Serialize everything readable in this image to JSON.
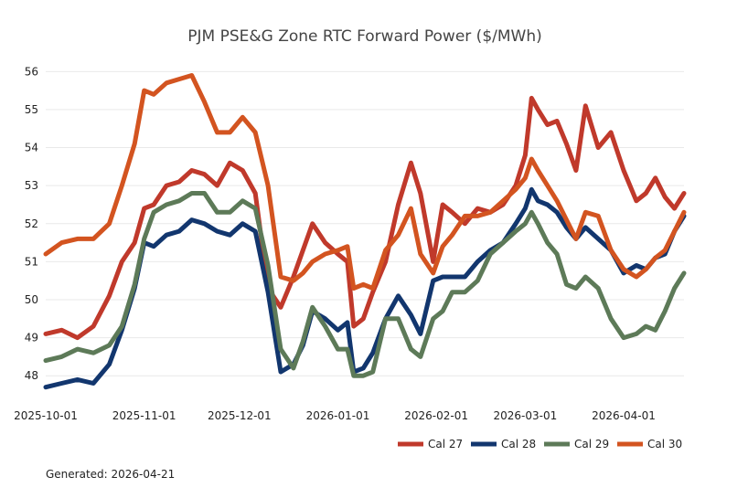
{
  "chart_data": {
    "type": "line",
    "title": "PJM PSE&G Zone RTC Forward Power ($/MWh)",
    "xlabel": "",
    "ylabel": "",
    "x_range": [
      "2025-10-01",
      "2026-04-20"
    ],
    "ylim": [
      47.5,
      56.2
    ],
    "yticks": [
      48,
      49,
      50,
      51,
      52,
      53,
      54,
      55,
      56
    ],
    "xticks": [
      "2025-10-01",
      "2025-11-01",
      "2025-12-01",
      "2026-01-01",
      "2026-02-01",
      "2026-03-01",
      "2026-04-01"
    ],
    "grid": true,
    "legend_position": "bottom-right",
    "series": [
      {
        "name": "Cal 27",
        "color": "#c0392b",
        "x": [
          "2025-10-01",
          "2025-10-06",
          "2025-10-11",
          "2025-10-16",
          "2025-10-21",
          "2025-10-25",
          "2025-10-29",
          "2025-11-01",
          "2025-11-04",
          "2025-11-08",
          "2025-11-12",
          "2025-11-16",
          "2025-11-20",
          "2025-11-24",
          "2025-11-28",
          "2025-12-02",
          "2025-12-06",
          "2025-12-10",
          "2025-12-14",
          "2025-12-18",
          "2025-12-21",
          "2025-12-24",
          "2025-12-28",
          "2026-01-01",
          "2026-01-04",
          "2026-01-06",
          "2026-01-09",
          "2026-01-12",
          "2026-01-16",
          "2026-01-20",
          "2026-01-24",
          "2026-01-27",
          "2026-01-31",
          "2026-02-03",
          "2026-02-06",
          "2026-02-10",
          "2026-02-14",
          "2026-02-18",
          "2026-02-22",
          "2026-02-26",
          "2026-03-01",
          "2026-03-03",
          "2026-03-05",
          "2026-03-08",
          "2026-03-11",
          "2026-03-14",
          "2026-03-17",
          "2026-03-20",
          "2026-03-24",
          "2026-03-28",
          "2026-04-01",
          "2026-04-05",
          "2026-04-08",
          "2026-04-11",
          "2026-04-14",
          "2026-04-17",
          "2026-04-20"
        ],
        "values": [
          49.1,
          49.2,
          49.0,
          49.3,
          50.1,
          51.0,
          51.5,
          52.4,
          52.5,
          53.0,
          53.1,
          53.4,
          53.3,
          53.0,
          53.6,
          53.4,
          52.8,
          50.3,
          49.8,
          50.6,
          51.3,
          52.0,
          51.5,
          51.2,
          51.0,
          49.3,
          49.5,
          50.2,
          51.0,
          52.5,
          53.6,
          52.8,
          51.0,
          52.5,
          52.3,
          52.0,
          52.4,
          52.3,
          52.5,
          53.0,
          53.8,
          55.3,
          55.0,
          54.6,
          54.7,
          54.1,
          53.4,
          55.1,
          54.0,
          54.4,
          53.4,
          52.6,
          52.8,
          53.2,
          52.7,
          52.4,
          52.8
        ]
      },
      {
        "name": "Cal 28",
        "color": "#12366e",
        "x": [
          "2025-10-01",
          "2025-10-06",
          "2025-10-11",
          "2025-10-16",
          "2025-10-21",
          "2025-10-25",
          "2025-10-29",
          "2025-11-01",
          "2025-11-04",
          "2025-11-08",
          "2025-11-12",
          "2025-11-16",
          "2025-11-20",
          "2025-11-24",
          "2025-11-28",
          "2025-12-02",
          "2025-12-06",
          "2025-12-10",
          "2025-12-14",
          "2025-12-18",
          "2025-12-21",
          "2025-12-24",
          "2025-12-28",
          "2026-01-01",
          "2026-01-04",
          "2026-01-06",
          "2026-01-09",
          "2026-01-12",
          "2026-01-16",
          "2026-01-20",
          "2026-01-24",
          "2026-01-27",
          "2026-01-31",
          "2026-02-03",
          "2026-02-06",
          "2026-02-10",
          "2026-02-14",
          "2026-02-18",
          "2026-02-22",
          "2026-02-26",
          "2026-03-01",
          "2026-03-03",
          "2026-03-05",
          "2026-03-08",
          "2026-03-11",
          "2026-03-14",
          "2026-03-17",
          "2026-03-20",
          "2026-03-24",
          "2026-03-28",
          "2026-04-01",
          "2026-04-05",
          "2026-04-08",
          "2026-04-11",
          "2026-04-14",
          "2026-04-17",
          "2026-04-20"
        ],
        "values": [
          47.7,
          47.8,
          47.9,
          47.8,
          48.3,
          49.2,
          50.3,
          51.5,
          51.4,
          51.7,
          51.8,
          52.1,
          52.0,
          51.8,
          51.7,
          52.0,
          51.8,
          50.2,
          48.1,
          48.3,
          48.8,
          49.7,
          49.5,
          49.2,
          49.4,
          48.1,
          48.2,
          48.6,
          49.5,
          50.1,
          49.6,
          49.1,
          50.5,
          50.6,
          50.6,
          50.6,
          51.0,
          51.3,
          51.5,
          52.0,
          52.4,
          52.9,
          52.6,
          52.5,
          52.3,
          51.9,
          51.6,
          51.9,
          51.6,
          51.3,
          50.7,
          50.9,
          50.8,
          51.1,
          51.2,
          51.8,
          52.2
        ]
      },
      {
        "name": "Cal 29",
        "color": "#5d7a58",
        "x": [
          "2025-10-01",
          "2025-10-06",
          "2025-10-11",
          "2025-10-16",
          "2025-10-21",
          "2025-10-25",
          "2025-10-29",
          "2025-11-01",
          "2025-11-04",
          "2025-11-08",
          "2025-11-12",
          "2025-11-16",
          "2025-11-20",
          "2025-11-24",
          "2025-11-28",
          "2025-12-02",
          "2025-12-06",
          "2025-12-10",
          "2025-12-14",
          "2025-12-18",
          "2025-12-21",
          "2025-12-24",
          "2025-12-28",
          "2026-01-01",
          "2026-01-04",
          "2026-01-06",
          "2026-01-09",
          "2026-01-12",
          "2026-01-16",
          "2026-01-20",
          "2026-01-24",
          "2026-01-27",
          "2026-01-31",
          "2026-02-03",
          "2026-02-06",
          "2026-02-10",
          "2026-02-14",
          "2026-02-18",
          "2026-02-22",
          "2026-02-26",
          "2026-03-01",
          "2026-03-03",
          "2026-03-05",
          "2026-03-08",
          "2026-03-11",
          "2026-03-14",
          "2026-03-17",
          "2026-03-20",
          "2026-03-24",
          "2026-03-28",
          "2026-04-01",
          "2026-04-05",
          "2026-04-08",
          "2026-04-11",
          "2026-04-14",
          "2026-04-17",
          "2026-04-20"
        ],
        "values": [
          48.4,
          48.5,
          48.7,
          48.6,
          48.8,
          49.3,
          50.4,
          51.6,
          52.3,
          52.5,
          52.6,
          52.8,
          52.8,
          52.3,
          52.3,
          52.6,
          52.4,
          50.9,
          48.7,
          48.2,
          48.9,
          49.8,
          49.3,
          48.7,
          48.7,
          48.0,
          48.0,
          48.1,
          49.5,
          49.5,
          48.7,
          48.5,
          49.5,
          49.7,
          50.2,
          50.2,
          50.5,
          51.2,
          51.5,
          51.8,
          52.0,
          52.3,
          52.0,
          51.5,
          51.2,
          50.4,
          50.3,
          50.6,
          50.3,
          49.5,
          49.0,
          49.1,
          49.3,
          49.2,
          49.7,
          50.3,
          50.7
        ]
      },
      {
        "name": "Cal 30",
        "color": "#d35420",
        "x": [
          "2025-10-01",
          "2025-10-06",
          "2025-10-11",
          "2025-10-16",
          "2025-10-21",
          "2025-10-25",
          "2025-10-29",
          "2025-11-01",
          "2025-11-04",
          "2025-11-08",
          "2025-11-12",
          "2025-11-16",
          "2025-11-20",
          "2025-11-24",
          "2025-11-28",
          "2025-12-02",
          "2025-12-06",
          "2025-12-10",
          "2025-12-14",
          "2025-12-18",
          "2025-12-21",
          "2025-12-24",
          "2025-12-28",
          "2026-01-01",
          "2026-01-04",
          "2026-01-06",
          "2026-01-09",
          "2026-01-12",
          "2026-01-16",
          "2026-01-20",
          "2026-01-24",
          "2026-01-27",
          "2026-01-31",
          "2026-02-03",
          "2026-02-06",
          "2026-02-10",
          "2026-02-14",
          "2026-02-18",
          "2026-02-22",
          "2026-02-26",
          "2026-03-01",
          "2026-03-03",
          "2026-03-05",
          "2026-03-08",
          "2026-03-11",
          "2026-03-14",
          "2026-03-17",
          "2026-03-20",
          "2026-03-24",
          "2026-03-28",
          "2026-04-01",
          "2026-04-05",
          "2026-04-08",
          "2026-04-11",
          "2026-04-14",
          "2026-04-17",
          "2026-04-20"
        ],
        "values": [
          51.2,
          51.5,
          51.6,
          51.6,
          52.0,
          53.0,
          54.1,
          55.5,
          55.4,
          55.7,
          55.8,
          55.9,
          55.2,
          54.4,
          54.4,
          54.8,
          54.4,
          53.0,
          50.6,
          50.5,
          50.7,
          51.0,
          51.2,
          51.3,
          51.4,
          50.3,
          50.4,
          50.3,
          51.3,
          51.7,
          52.4,
          51.2,
          50.7,
          51.4,
          51.7,
          52.2,
          52.2,
          52.3,
          52.6,
          52.9,
          53.2,
          53.7,
          53.4,
          53.0,
          52.6,
          52.1,
          51.6,
          52.3,
          52.2,
          51.3,
          50.8,
          50.6,
          50.8,
          51.1,
          51.3,
          51.8,
          52.3
        ]
      }
    ]
  },
  "footer": {
    "generated": "Generated: 2026-04-21"
  }
}
